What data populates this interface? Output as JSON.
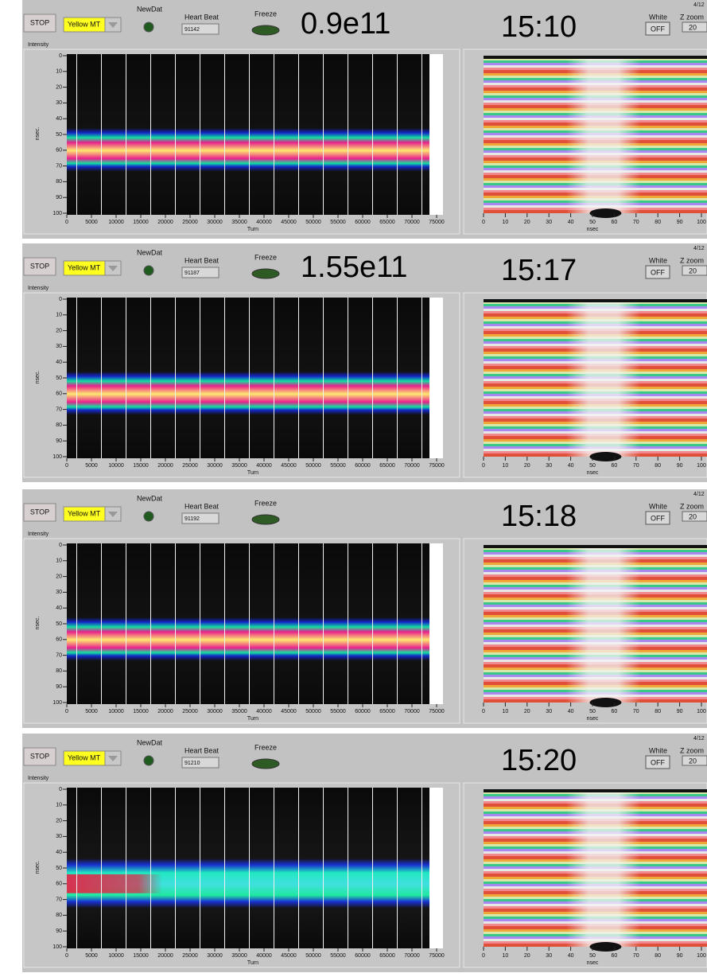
{
  "shared": {
    "stop": "STOP",
    "selector": "Yellow MT",
    "newdat": "NewDat",
    "heartbeat_label": "Heart Beat",
    "freeze": "Freeze",
    "white": "White",
    "white_button": "OFF",
    "zoom_label": "Z zoom",
    "zoom_value": "20",
    "date": "4/12",
    "intensity_label": "Intensity",
    "left_y_label": "nsec.",
    "left_x_label": "Turn",
    "right_x_label": "nsec",
    "left_yticks": [
      0,
      10,
      20,
      30,
      40,
      50,
      60,
      70,
      80,
      90,
      100
    ],
    "left_xticks": [
      0,
      5000,
      10000,
      15000,
      20000,
      25000,
      30000,
      35000,
      40000,
      45000,
      50000,
      55000,
      60000,
      65000,
      70000,
      75000
    ],
    "right_xticks": [
      0,
      10,
      20,
      30,
      40,
      50,
      60,
      70,
      80,
      90,
      100
    ]
  },
  "panels": [
    {
      "heartbeat": "91142",
      "annotation": "0.9e11",
      "time": "15:10"
    },
    {
      "heartbeat": "91187",
      "annotation": "1.55e11",
      "time": "15:17"
    },
    {
      "heartbeat": "91192",
      "time": "15:18"
    },
    {
      "heartbeat": "91210",
      "time": "15:20"
    }
  ]
}
